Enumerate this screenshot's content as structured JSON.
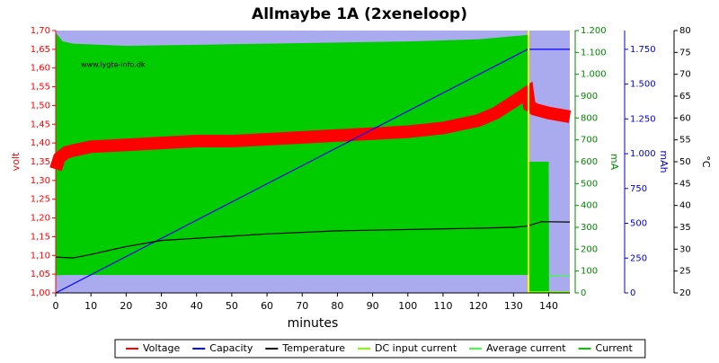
{
  "chart_data": {
    "type": "line",
    "title": "Allmaybe 1A (2xeneloop)",
    "watermark": "www.lygte-info.dk",
    "xlabel": "minutes",
    "xlim": [
      0,
      146
    ],
    "xticks": [
      0,
      10,
      20,
      30,
      40,
      50,
      60,
      70,
      80,
      90,
      100,
      110,
      120,
      130,
      140
    ],
    "ylabel": "volt",
    "ylim": [
      1.0,
      1.7
    ],
    "yticks": [
      {
        "value": 1.0,
        "label": "1,00"
      },
      {
        "value": 1.05,
        "label": "1,05"
      },
      {
        "value": 1.1,
        "label": "1,10"
      },
      {
        "value": 1.15,
        "label": "1,15"
      },
      {
        "value": 1.2,
        "label": "1,20"
      },
      {
        "value": 1.25,
        "label": "1,25"
      },
      {
        "value": 1.3,
        "label": "1,30"
      },
      {
        "value": 1.35,
        "label": "1,35"
      },
      {
        "value": 1.4,
        "label": "1,40"
      },
      {
        "value": 1.45,
        "label": "1,45"
      },
      {
        "value": 1.5,
        "label": "1,50"
      },
      {
        "value": 1.55,
        "label": "1,55"
      },
      {
        "value": 1.6,
        "label": "1,60"
      },
      {
        "value": 1.65,
        "label": "1,65"
      },
      {
        "value": 1.7,
        "label": "1,70"
      }
    ],
    "y2label": "mA",
    "y2lim": [
      0,
      1200
    ],
    "y2ticks": [
      0,
      100,
      200,
      300,
      400,
      500,
      600,
      700,
      800,
      900,
      {
        "value": 1000,
        "label": "1.000"
      },
      {
        "value": 1100,
        "label": "1.100"
      },
      {
        "value": 1200,
        "label": "1.200"
      }
    ],
    "y3label": "mAh",
    "y3lim": [
      0,
      1885
    ],
    "y3ticks": [
      0,
      250,
      500,
      750,
      {
        "value": 1000,
        "label": "1.000"
      },
      {
        "value": 1250,
        "label": "1.250"
      },
      {
        "value": 1500,
        "label": "1.500"
      },
      {
        "value": 1750,
        "label": "1.750"
      }
    ],
    "y4label": "°C",
    "y4lim": [
      20,
      80
    ],
    "y4ticks": [
      20,
      25,
      30,
      35,
      40,
      45,
      50,
      55,
      60,
      65,
      70,
      75,
      80
    ],
    "series": [
      {
        "name": "Voltage",
        "color": "#ff0000",
        "axis": "y",
        "x": [
          0,
          1,
          3,
          5,
          10,
          20,
          30,
          40,
          50,
          60,
          70,
          80,
          90,
          100,
          110,
          120,
          125,
          130,
          134,
          134.5,
          136,
          140,
          146
        ],
        "values": [
          1.33,
          1.36,
          1.375,
          1.38,
          1.39,
          1.395,
          1.4,
          1.405,
          1.405,
          1.41,
          1.415,
          1.42,
          1.425,
          1.43,
          1.44,
          1.46,
          1.48,
          1.51,
          1.535,
          1.5,
          1.49,
          1.48,
          1.47
        ]
      },
      {
        "name": "Capacity",
        "color": "#0000ff",
        "axis": "y3",
        "x": [
          0,
          134,
          146
        ],
        "values": [
          0,
          1750,
          1750
        ]
      },
      {
        "name": "Temperature",
        "color": "#000000",
        "axis": "y4",
        "x": [
          0,
          5,
          10,
          20,
          30,
          40,
          60,
          80,
          100,
          120,
          130,
          134,
          138,
          146
        ],
        "values": [
          28.2,
          28,
          28.8,
          30.6,
          32,
          32.5,
          33.5,
          34.2,
          34.5,
          34.8,
          35,
          35.3,
          36.3,
          36.2
        ]
      },
      {
        "name": "DC input current",
        "color": "#80ff00",
        "axis": "y2",
        "x": [
          134.5,
          146
        ],
        "values": [
          5,
          5
        ]
      },
      {
        "name": "Average current",
        "color": "#40ff40",
        "axis": "y2",
        "x": [
          140,
          146
        ],
        "values": [
          80,
          80
        ]
      },
      {
        "name": "Current",
        "color": "#00cc00",
        "axis": "y2",
        "area": true,
        "x": [
          0,
          2,
          5,
          20,
          40,
          60,
          80,
          100,
          120,
          134,
          134.1,
          140,
          140.1
        ],
        "values": [
          1190,
          1150,
          1140,
          1130,
          1135,
          1140,
          1145,
          1150,
          1160,
          1180,
          600,
          600,
          0
        ],
        "low": [
          80,
          82,
          82,
          82,
          82,
          82,
          82,
          82,
          82,
          82,
          0,
          0,
          0
        ]
      }
    ]
  }
}
